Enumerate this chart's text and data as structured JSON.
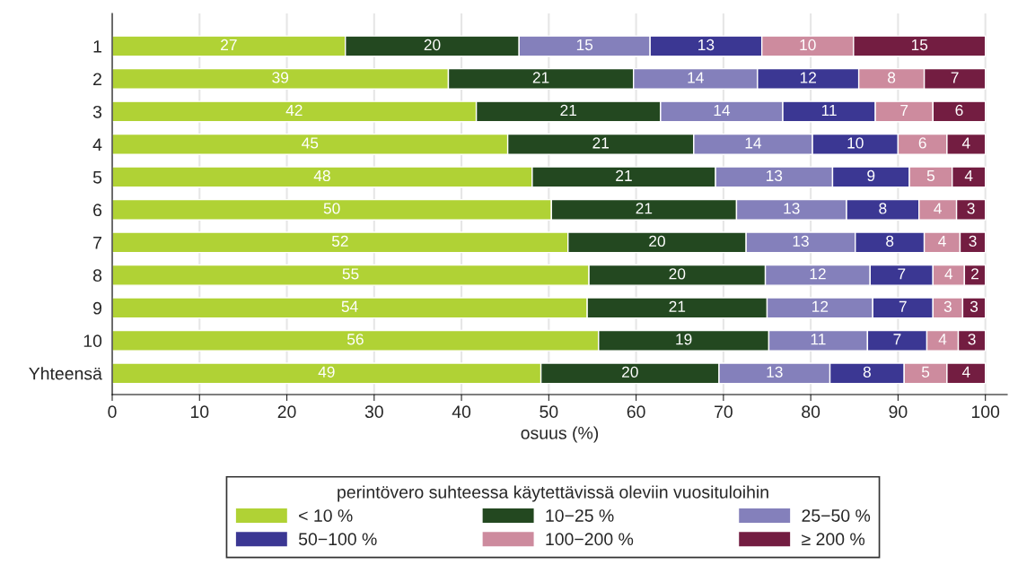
{
  "chart_data": {
    "type": "bar",
    "orientation": "horizontal",
    "stacked": true,
    "xlabel": "osuus (%)",
    "legend_title": "perintövero suhteessa käytettävissä oleviin vuosituloihin",
    "categories": [
      "1",
      "2",
      "3",
      "4",
      "5",
      "6",
      "7",
      "8",
      "9",
      "10",
      "Yhteensä"
    ],
    "series": [
      {
        "name": "< 10 %",
        "color": "#b0d235",
        "values": [
          26.7,
          38.5,
          41.7,
          45.3,
          48.1,
          50.3,
          52.2,
          54.6,
          54.4,
          55.7,
          49.1
        ],
        "value_labels": [
          "27",
          "39",
          "42",
          "45",
          "48",
          "50",
          "52",
          "55",
          "54",
          "56",
          "49"
        ]
      },
      {
        "name": "10−25 %",
        "color": "#234820",
        "values": [
          19.9,
          21.2,
          21.1,
          21.3,
          21.0,
          21.2,
          20.4,
          20.2,
          20.6,
          19.5,
          20.4
        ],
        "value_labels": [
          "20",
          "21",
          "21",
          "21",
          "21",
          "21",
          "20",
          "20",
          "21",
          "19",
          "20"
        ]
      },
      {
        "name": "25−50 %",
        "color": "#8480bb",
        "values": [
          15.0,
          14.2,
          14.0,
          13.6,
          13.4,
          12.6,
          12.5,
          12.0,
          12.1,
          11.3,
          12.7
        ],
        "value_labels": [
          "15",
          "14",
          "14",
          "14",
          "13",
          "13",
          "13",
          "12",
          "12",
          "11",
          "13"
        ]
      },
      {
        "name": "50−100 %",
        "color": "#3b3793",
        "values": [
          12.8,
          11.6,
          10.6,
          9.8,
          8.8,
          8.3,
          7.9,
          7.2,
          6.9,
          6.8,
          8.5
        ],
        "value_labels": [
          "13",
          "12",
          "11",
          "10",
          "9",
          "8",
          "8",
          "7",
          "7",
          "7",
          "8"
        ]
      },
      {
        "name": "100−200 %",
        "color": "#cd8b9e",
        "values": [
          10.5,
          7.5,
          6.6,
          5.6,
          4.9,
          4.3,
          4.1,
          3.6,
          3.4,
          3.6,
          4.9
        ],
        "value_labels": [
          "10",
          "8",
          "7",
          "6",
          "5",
          "4",
          "4",
          "4",
          "3",
          "4",
          "5"
        ]
      },
      {
        "name": "≥ 200 %",
        "color": "#731d41",
        "values": [
          15.1,
          7.0,
          6.0,
          4.4,
          3.8,
          3.3,
          2.9,
          2.4,
          2.6,
          3.1,
          4.4
        ],
        "value_labels": [
          "15",
          "7",
          "6",
          "4",
          "4",
          "3",
          "3",
          "2",
          "3",
          "3",
          "4"
        ]
      }
    ],
    "xlim": [
      0,
      102.5
    ],
    "xticks": [
      0,
      10,
      20,
      30,
      40,
      50,
      60,
      70,
      80,
      90,
      100
    ],
    "grid": "x",
    "legend": "bottom"
  }
}
